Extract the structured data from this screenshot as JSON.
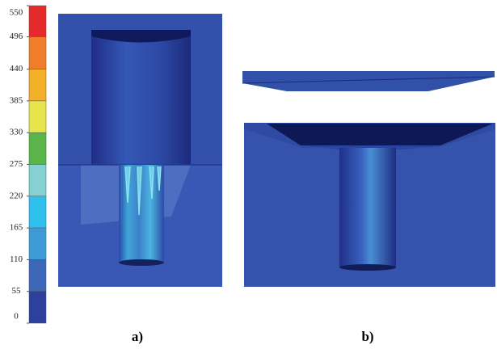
{
  "colorbar": {
    "ticks": [
      550,
      496,
      440,
      385,
      330,
      275,
      220,
      165,
      110,
      55,
      0
    ],
    "colors": [
      "#e42a2b",
      "#ef7d2a",
      "#f3b127",
      "#e6e64c",
      "#59b44a",
      "#84d0d2",
      "#2fc0ee",
      "#3f9bd7",
      "#3c66b8",
      "#2d419c"
    ]
  },
  "panels": [
    {
      "label": "a)"
    },
    {
      "label": "b)"
    }
  ]
}
